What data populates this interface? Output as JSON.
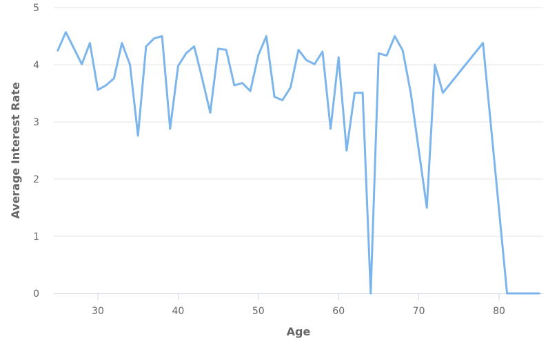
{
  "chart_data": {
    "type": "line",
    "title": "",
    "xlabel": "Age",
    "ylabel": "Average Interest Rate",
    "xlim": [
      24.5,
      85.5
    ],
    "ylim": [
      0,
      5
    ],
    "x_ticks": [
      30,
      40,
      50,
      60,
      70,
      80
    ],
    "y_ticks": [
      0,
      1,
      2,
      3,
      4,
      5
    ],
    "grid": true,
    "legend": "none",
    "colors": {
      "series": "#7cb5ec",
      "grid": "#e6e6e6",
      "text": "#666666"
    },
    "series": [
      {
        "x": [
          25,
          26,
          27,
          28,
          29,
          30,
          31,
          32,
          33,
          34,
          35,
          36,
          37,
          38,
          39,
          40,
          41,
          42,
          43,
          44,
          45,
          46,
          47,
          48,
          49,
          50,
          51,
          52,
          53,
          54,
          55,
          56,
          57,
          58,
          59,
          60,
          61,
          62,
          63,
          64,
          65,
          66,
          67,
          68,
          69,
          70,
          71,
          72,
          73,
          78,
          81,
          85
        ],
        "y": [
          4.25,
          4.57,
          4.29,
          4.01,
          4.38,
          3.56,
          3.64,
          3.76,
          4.38,
          4.0,
          2.76,
          4.32,
          4.46,
          4.5,
          2.88,
          3.98,
          4.2,
          4.32,
          3.76,
          3.16,
          4.28,
          4.26,
          3.64,
          3.68,
          3.54,
          4.17,
          4.5,
          3.44,
          3.38,
          3.6,
          4.26,
          4.08,
          4.01,
          4.23,
          2.88,
          4.13,
          2.5,
          3.51,
          3.51,
          0.0,
          4.2,
          4.16,
          4.5,
          4.25,
          3.5,
          2.5,
          1.5,
          4.0,
          3.51,
          4.38,
          0.0,
          0.0
        ]
      }
    ]
  }
}
